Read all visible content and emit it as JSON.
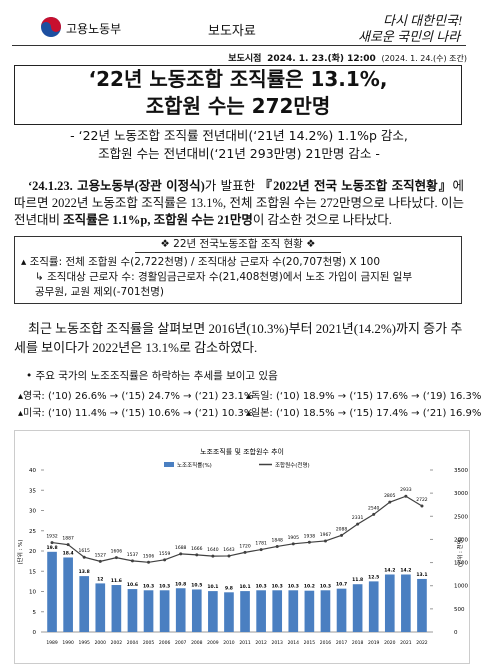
{
  "header": {
    "ministry": "고용노동부",
    "doc_type": "보도자료",
    "slogan_line1": "다시 대한민국!",
    "slogan_line2": "새로운 국민의 나라"
  },
  "release": {
    "label": "보도시점",
    "time": "2024. 1. 23.(화) 12:00",
    "note": "(2024. 1. 24.(수) 조간)"
  },
  "title": [
    "‘22년 노동조합 조직률은 13.1%,",
    "조합원 수는 272만명"
  ],
  "subtitle": [
    "- ‘22년 노동조합 조직률 전년대비(‘21년 14.2%) 1.1%p 감소,",
    "조합원 수는 전년대비(‘21년 293만명) 21만명 감소 -"
  ],
  "paragraph1": [
    {
      "text": "‘24.1.23. 고용노동부(장관 이정식)",
      "bold": true
    },
    {
      "text": "가 발표한 ",
      "bold": false
    },
    {
      "text": "『2022년 전국 노동조합 조직현황』",
      "bold": true
    },
    {
      "text": "에 따르면 2022년 노동조합 조직률은 13.1%, 전체 조합원 수는 272만명으로 나타났다. 이는 전년대비 ",
      "bold": false
    },
    {
      "text": "조직률은 1.1%p, 조합원 수는 21만명",
      "bold": true
    },
    {
      "text": "이 감소한 것으로 나타났다.",
      "bold": false
    }
  ],
  "box": {
    "header": "❖ 22년 전국노동조합 조직 현황 ❖",
    "items": [
      "▴ 조직률: 전체 조합원 수(2,722천명) / 조직대상 근로자 수(20,707천명) X 100",
      "↳ 조직대상 근로자 수: 경활임금근로자 수(21,408천명)에서 노조 가입이 금지된 일부 공무원, 교원 제외(-701천명)"
    ]
  },
  "paragraph2": "최근 노동조합 조직률을 살펴보면 2016년(10.3%)부터 2021년(14.2%)까지 증가 추세를 보이다가 2022년은 13.1%로 감소하였다.",
  "bullet": "• 주요 국가의 노조조직률은 하락하는 추세를 보이고 있음",
  "countries": [
    [
      "▴영국: (‘10) 26.6% → (‘15) 24.7% → (‘21) 23.1%",
      "▴독일: (‘10) 18.9% → (‘15) 17.6% → (‘19) 16.3%"
    ],
    [
      "▴미국: (‘10) 11.4% → (‘15) 10.6% → (‘21) 10.3%",
      "▴일본: (‘10) 18.5% → (‘15) 17.4% → (‘21) 16.9%"
    ]
  ],
  "chart_data": {
    "type": "bar-line",
    "title": "노조조직률 및 조합원수 추이",
    "y_label": "(단위 : %)",
    "y2_label": "(단위 : 천명)",
    "categories": [
      "1989",
      "1990",
      "1995",
      "2000",
      "2002",
      "2004",
      "2005",
      "2006",
      "2007",
      "2008",
      "2009",
      "2010",
      "2011",
      "2012",
      "2013",
      "2014",
      "2015",
      "2016",
      "2017",
      "2018",
      "2019",
      "2020",
      "2021",
      "2022"
    ],
    "series": [
      {
        "name": "노조조직률(%)",
        "color": "#4a7fc1",
        "values": [
          19.8,
          18.4,
          13.8,
          12,
          11.6,
          10.6,
          10.3,
          10.3,
          10.8,
          10.5,
          10.1,
          9.8,
          10.1,
          10.3,
          10.3,
          10.3,
          10.2,
          10.3,
          10.7,
          11.8,
          12.5,
          14.2,
          14.2,
          13.1
        ]
      },
      {
        "name": "조합원수(천명)",
        "color": "#404040",
        "axis": "y2",
        "values": [
          1932,
          1887,
          1615,
          1527,
          1606,
          1537,
          1506,
          1559,
          1688,
          1666,
          1640,
          1643,
          1720,
          1781,
          1848,
          1905,
          1938,
          1967,
          2088,
          2331,
          2540,
          2805,
          2933,
          2722
        ]
      }
    ],
    "ylim": [
      0,
      40
    ],
    "yticks": [
      0,
      5,
      10,
      15,
      20,
      25,
      30,
      35,
      40
    ],
    "y2lim": [
      0,
      3500
    ],
    "y2ticks": [
      0,
      500,
      1000,
      1500,
      2000,
      2500,
      3000,
      3500
    ]
  }
}
